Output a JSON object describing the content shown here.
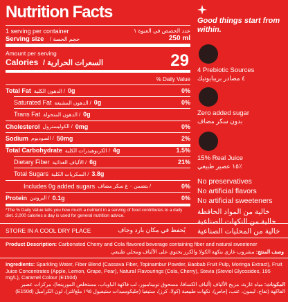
{
  "nutrition": {
    "title": "Nutrition Facts",
    "servings": "1 serving per container",
    "servings_ar": "عدد الحصص في العبوة ١",
    "serving_size": "Serving size",
    "serving_size_ar": "/ حجم الحصة",
    "serving_size_value": "250 ml",
    "amount_per_serving": "Amount per serving",
    "calories": "Calories",
    "calories_ar": "/ السعرات الحرارية",
    "calories_value": "29",
    "daily_value_header": "% Daily Value",
    "rows": [
      {
        "name": "Total Fat",
        "name_ar": "/ الدهون الكلية",
        "amount": "0g",
        "dv": "0%"
      },
      {
        "name": "Saturated Fat",
        "name_ar": "/ الدهون المشبعة",
        "amount": "0g",
        "dv": "0%"
      },
      {
        "name": "Trans Fat",
        "name_ar": "/ الدهون المتحولة",
        "amount": "0g"
      },
      {
        "name": "Cholesterol",
        "name_ar": "/ الكوليسترول",
        "amount": "0mg",
        "dv": "0%"
      },
      {
        "name": "Sodium",
        "name_ar": "/ الصوديوم",
        "amount": "50mg",
        "dv": "2%"
      },
      {
        "name": "Total Carbohydrate",
        "name_ar": "/ الكربوهيدرات الكلية",
        "amount": "4g",
        "dv": "1.5%"
      },
      {
        "name": "Dietary Fiber",
        "name_ar": "/ الألياف الغذائية",
        "amount": "6g",
        "dv": "21%"
      },
      {
        "name": "Total Sugars",
        "name_ar": "/ السكريات الكلية",
        "amount": "3.8g"
      },
      {
        "name": "Includes 0g added sugars",
        "name_ar": "/ يتضمن ٠ غ سكر مضاف",
        "dv": "0%"
      },
      {
        "name": "Protein",
        "name_ar": "/ البروتين",
        "amount": "0.1g",
        "dv": "0%"
      }
    ],
    "footnote": "*The % Daily Value tells you how much a nutrient in a serving of food contributes to a daily diet. 2,000 calories a day is used for general nutrition advice."
  },
  "storage": {
    "en": "STORE IN A COOL DRY PLACE",
    "ar": "يُحفظ في مكان بارد وجاف"
  },
  "description": {
    "label": "Product Description:",
    "text": "Carbonated Cherry and Cola flavored beverage containing fiber and natural sweetener",
    "label_ar": "وصف المنتج:",
    "text_ar": "مشروب غازي بنكهة الكولا والكرز يحتوي على الألياف ومحلي طبيعي"
  },
  "ingredients": {
    "label": "Ingredients:",
    "text": "Sparkling Water, Fiber Blend (Cassava Fiber, Topinambur Powder, Baobab Fruit Pulp, Moringa Extract), Fruit Juice Concentrates (Apple, Lemon, Grape, Pear), Natural Flavourings (Cola, Cherry), Stevia (Steviol Glycosides, 195 mg/L), Caramel Colour (E150d)",
    "label_ar": "المكونات:",
    "text_ar": "مياه غازية، مزيج الألياف (ألياف الكسافا، مسحوق توبينامبور، لب فاكهة الباوباب، مستخلص المورينجا)، مركزات عصير الفاكهة (تفاح، ليمون، عنب، إجاص)، نكهات طبيعية (كولا، كرز)، ستيفيا (جليكوسيدات ستيفيول ١٩٥ ملغ/لتر)، لون الكراميل (E150d)"
  },
  "side": {
    "tagline": "Good things start from within.",
    "features": [
      {
        "en": "4 Prebiotic Sources",
        "ar": "٤ مصادر بريبايوتيك"
      },
      {
        "en": "Zero added sugar",
        "ar": "بدون سكر مضاف"
      },
      {
        "en": "15% Real Juice",
        "ar": "٪١٥ عصير طبيعي"
      }
    ],
    "claims": [
      "No preservatives",
      "No artificial flavors",
      "No artificial sweeteners"
    ],
    "claims_ar": [
      "خالية من المواد الحافظة",
      "خالية من النكهات الصناعية",
      "خالية من المحليات الصناعية"
    ]
  }
}
